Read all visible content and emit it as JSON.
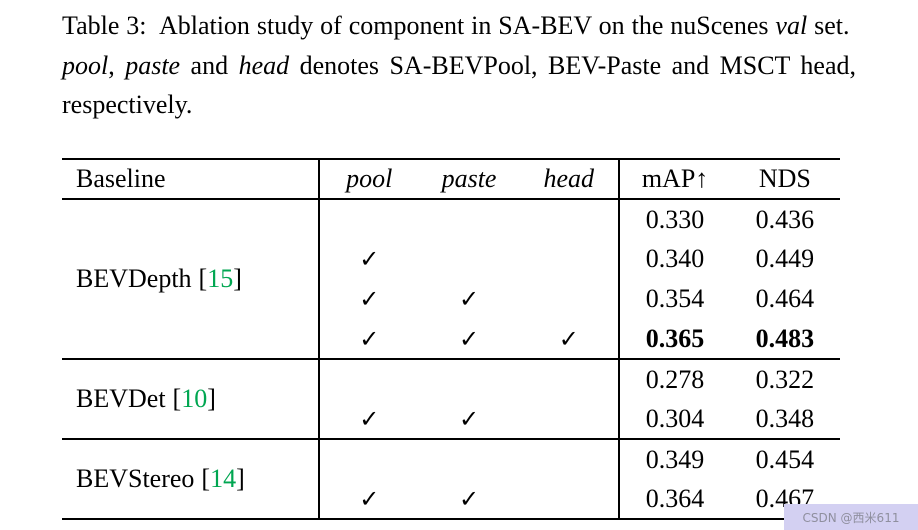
{
  "colors": {
    "citation": "#00a651",
    "watermark_bg": "#d3d0f2",
    "watermark_text": "#8f8f9e"
  },
  "caption": {
    "s1": "Table 3:  Ablation study of component in SA-BEV on the nuScenes ",
    "val": "val",
    "s2": " set.  ",
    "pool": "pool",
    "s3": ", ",
    "paste": "paste",
    "s4": " and ",
    "head": "head",
    "s5": " denotes SA-BEVPool, BEV-Paste and MSCT head, respectively."
  },
  "table": {
    "header": {
      "baseline": "Baseline",
      "pool": "pool",
      "paste": "paste",
      "head": "head",
      "map": "mAP↑",
      "nds": "NDS"
    },
    "groups": [
      {
        "name": "BEVDepth",
        "cite_open": "[",
        "cite_num": "15",
        "cite_close": "]",
        "rows": [
          {
            "pool": "",
            "paste": "",
            "head": "",
            "map": "0.330",
            "nds": "0.436",
            "bold": false
          },
          {
            "pool": "✓",
            "paste": "",
            "head": "",
            "map": "0.340",
            "nds": "0.449",
            "bold": false
          },
          {
            "pool": "✓",
            "paste": "✓",
            "head": "",
            "map": "0.354",
            "nds": "0.464",
            "bold": false
          },
          {
            "pool": "✓",
            "paste": "✓",
            "head": "✓",
            "map": "0.365",
            "nds": "0.483",
            "bold": true
          }
        ]
      },
      {
        "name": "BEVDet",
        "cite_open": "[",
        "cite_num": "10",
        "cite_close": "]",
        "rows": [
          {
            "pool": "",
            "paste": "",
            "head": "",
            "map": "0.278",
            "nds": "0.322",
            "bold": false
          },
          {
            "pool": "✓",
            "paste": "✓",
            "head": "",
            "map": "0.304",
            "nds": "0.348",
            "bold": false
          }
        ]
      },
      {
        "name": "BEVStereo",
        "cite_open": "[",
        "cite_num": "14",
        "cite_close": "]",
        "rows": [
          {
            "pool": "",
            "paste": "",
            "head": "",
            "map": "0.349",
            "nds": "0.454",
            "bold": false
          },
          {
            "pool": "✓",
            "paste": "✓",
            "head": "",
            "map": "0.364",
            "nds": "0.467",
            "bold": false
          }
        ]
      }
    ]
  },
  "watermark": "CSDN @西米611"
}
